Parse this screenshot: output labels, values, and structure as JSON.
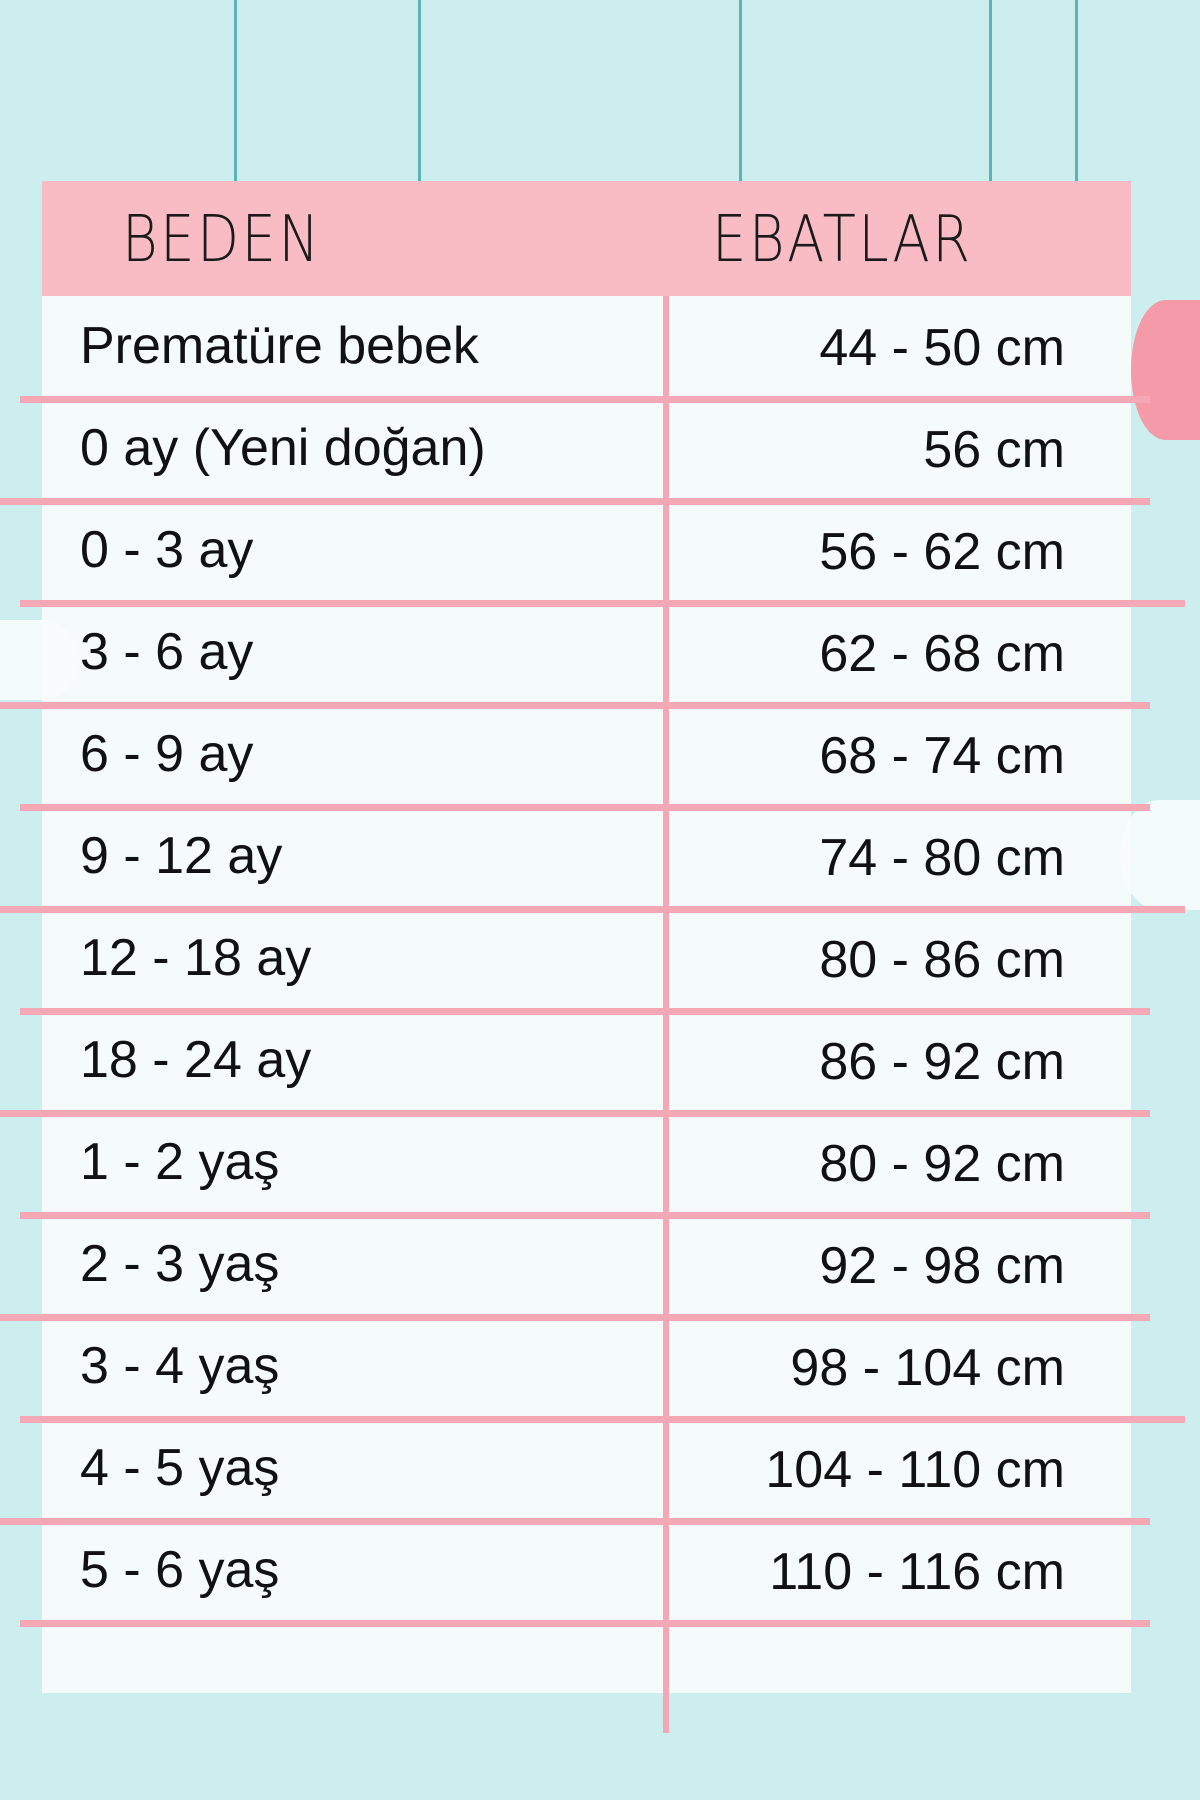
{
  "colors": {
    "background": "#cdeeee",
    "header": "#f9bcc4",
    "lines": "#f4a8b5",
    "strings": "#5db3b8"
  },
  "header": {
    "size_label": "BEDEN",
    "dimension_label": "EBATLAR"
  },
  "rows": [
    {
      "size": "Prematüre bebek",
      "dimension": "44 - 50 cm"
    },
    {
      "size": "0 ay (Yeni doğan)",
      "dimension": "56 cm"
    },
    {
      "size": "0 - 3 ay",
      "dimension": "56 - 62 cm"
    },
    {
      "size": "3 - 6 ay",
      "dimension": "62 - 68 cm"
    },
    {
      "size": "6 - 9 ay",
      "dimension": "68 - 74 cm"
    },
    {
      "size": "9 - 12 ay",
      "dimension": "74 - 80 cm"
    },
    {
      "size": "12 - 18 ay",
      "dimension": "80 - 86 cm"
    },
    {
      "size": "18 - 24 ay",
      "dimension": "86 - 92 cm"
    },
    {
      "size": "1 - 2 yaş",
      "dimension": "80 - 92 cm"
    },
    {
      "size": "2 - 3 yaş",
      "dimension": "92 - 98 cm"
    },
    {
      "size": "3 - 4 yaş",
      "dimension": "98 - 104 cm"
    },
    {
      "size": "4 - 5 yaş",
      "dimension": "104 - 110 cm"
    },
    {
      "size": "5 - 6 yaş",
      "dimension": "110 - 116 cm"
    }
  ]
}
